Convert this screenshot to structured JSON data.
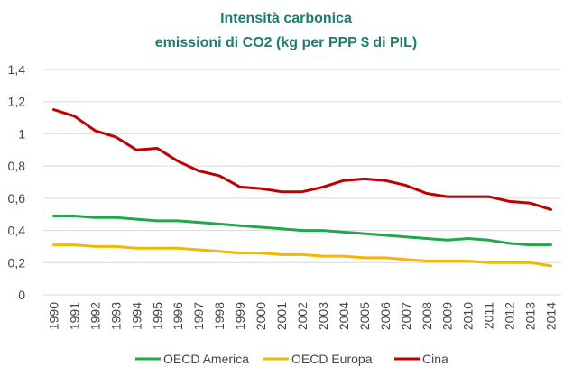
{
  "chart_data": {
    "type": "line",
    "title": "Intensità carbonica",
    "subtitle": "emissioni di CO2  (kg per PPP $ di PIL)",
    "x": [
      "1990",
      "1991",
      "1992",
      "1993",
      "1994",
      "1995",
      "1996",
      "1997",
      "1998",
      "1999",
      "2000",
      "2001",
      "2002",
      "2003",
      "2004",
      "2005",
      "2006",
      "2007",
      "2008",
      "2009",
      "2010",
      "2011",
      "2012",
      "2013",
      "2014"
    ],
    "ylim": [
      0,
      1.4
    ],
    "yticks": [
      "0",
      "0,2",
      "0,4",
      "0,6",
      "0,8",
      "1",
      "1,2",
      "1,4"
    ],
    "grid": true,
    "legend_position": "bottom",
    "series": [
      {
        "name": "OECD America",
        "color": "#22a84b",
        "values": [
          0.49,
          0.49,
          0.48,
          0.48,
          0.47,
          0.46,
          0.46,
          0.45,
          0.44,
          0.43,
          0.42,
          0.41,
          0.4,
          0.4,
          0.39,
          0.38,
          0.37,
          0.36,
          0.35,
          0.34,
          0.35,
          0.34,
          0.32,
          0.31,
          0.31
        ]
      },
      {
        "name": "OECD Europa",
        "color": "#f2b705",
        "values": [
          0.31,
          0.31,
          0.3,
          0.3,
          0.29,
          0.29,
          0.29,
          0.28,
          0.27,
          0.26,
          0.26,
          0.25,
          0.25,
          0.24,
          0.24,
          0.23,
          0.23,
          0.22,
          0.21,
          0.21,
          0.21,
          0.2,
          0.2,
          0.2,
          0.18
        ]
      },
      {
        "name": "Cina",
        "color": "#c00000",
        "values": [
          1.15,
          1.11,
          1.02,
          0.98,
          0.9,
          0.91,
          0.83,
          0.77,
          0.74,
          0.67,
          0.66,
          0.64,
          0.64,
          0.67,
          0.71,
          0.72,
          0.71,
          0.68,
          0.63,
          0.61,
          0.61,
          0.61,
          0.58,
          0.57,
          0.53
        ]
      }
    ]
  }
}
